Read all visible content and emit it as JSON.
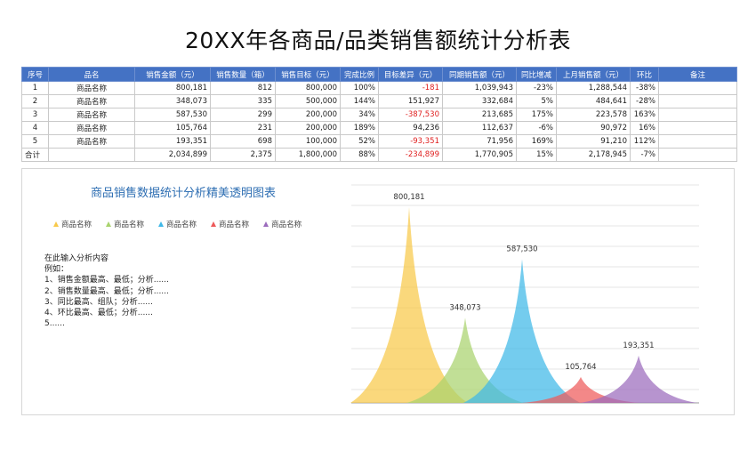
{
  "title": "20XX年各商品/品类销售额统计分析表",
  "table": {
    "headers": [
      "序号",
      "品名",
      "销售金额（元）",
      "销售数量（箱）",
      "销售目标（元）",
      "完成比例",
      "目标差异（元）",
      "同期销售额（元）",
      "同比增减",
      "上月销售额（元）",
      "环比",
      "备注"
    ],
    "rows": [
      [
        "1",
        "商品名称",
        "800,181",
        "812",
        "800,000",
        "100%",
        "-181",
        "1,039,943",
        "-23%",
        "1,288,544",
        "-38%",
        ""
      ],
      [
        "2",
        "商品名称",
        "348,073",
        "335",
        "500,000",
        "144%",
        "151,927",
        "332,684",
        "5%",
        "484,641",
        "-28%",
        ""
      ],
      [
        "3",
        "商品名称",
        "587,530",
        "299",
        "200,000",
        "34%",
        "-387,530",
        "213,685",
        "175%",
        "223,578",
        "163%",
        ""
      ],
      [
        "4",
        "商品名称",
        "105,764",
        "231",
        "200,000",
        "189%",
        "94,236",
        "112,637",
        "-6%",
        "90,972",
        "16%",
        ""
      ],
      [
        "5",
        "商品名称",
        "193,351",
        "698",
        "100,000",
        "52%",
        "-93,351",
        "71,956",
        "169%",
        "91,210",
        "112%",
        ""
      ]
    ],
    "total": [
      "合计",
      "",
      "2,034,899",
      "2,375",
      "1,800,000",
      "88%",
      "-234,899",
      "1,770,905",
      "15%",
      "2,178,945",
      "-7%",
      ""
    ]
  },
  "analysis": {
    "lines": [
      "在此输入分析内容",
      "例如：",
      "1、销售金额最高、最低；分析......",
      "2、销售数量最高、最低；分析......",
      "3、同比最高、组队；分析......",
      "4、环比最高、最低；分析......",
      "5......"
    ]
  },
  "chart_data": {
    "type": "area",
    "title": "商品销售数据统计分析精美透明图表",
    "categories": [
      "商品名称",
      "商品名称",
      "商品名称",
      "商品名称",
      "商品名称"
    ],
    "values": [
      800181,
      348073,
      587530,
      105764,
      193351
    ],
    "data_labels": [
      "800,181",
      "348,073",
      "587,530",
      "105,764",
      "193,351"
    ],
    "colors": [
      "#f8c94a",
      "#a9d36e",
      "#3fb8e8",
      "#ee5a5a",
      "#9b6bbd"
    ],
    "ylim": [
      0,
      800181
    ],
    "grid": true,
    "legend": "top-left"
  }
}
